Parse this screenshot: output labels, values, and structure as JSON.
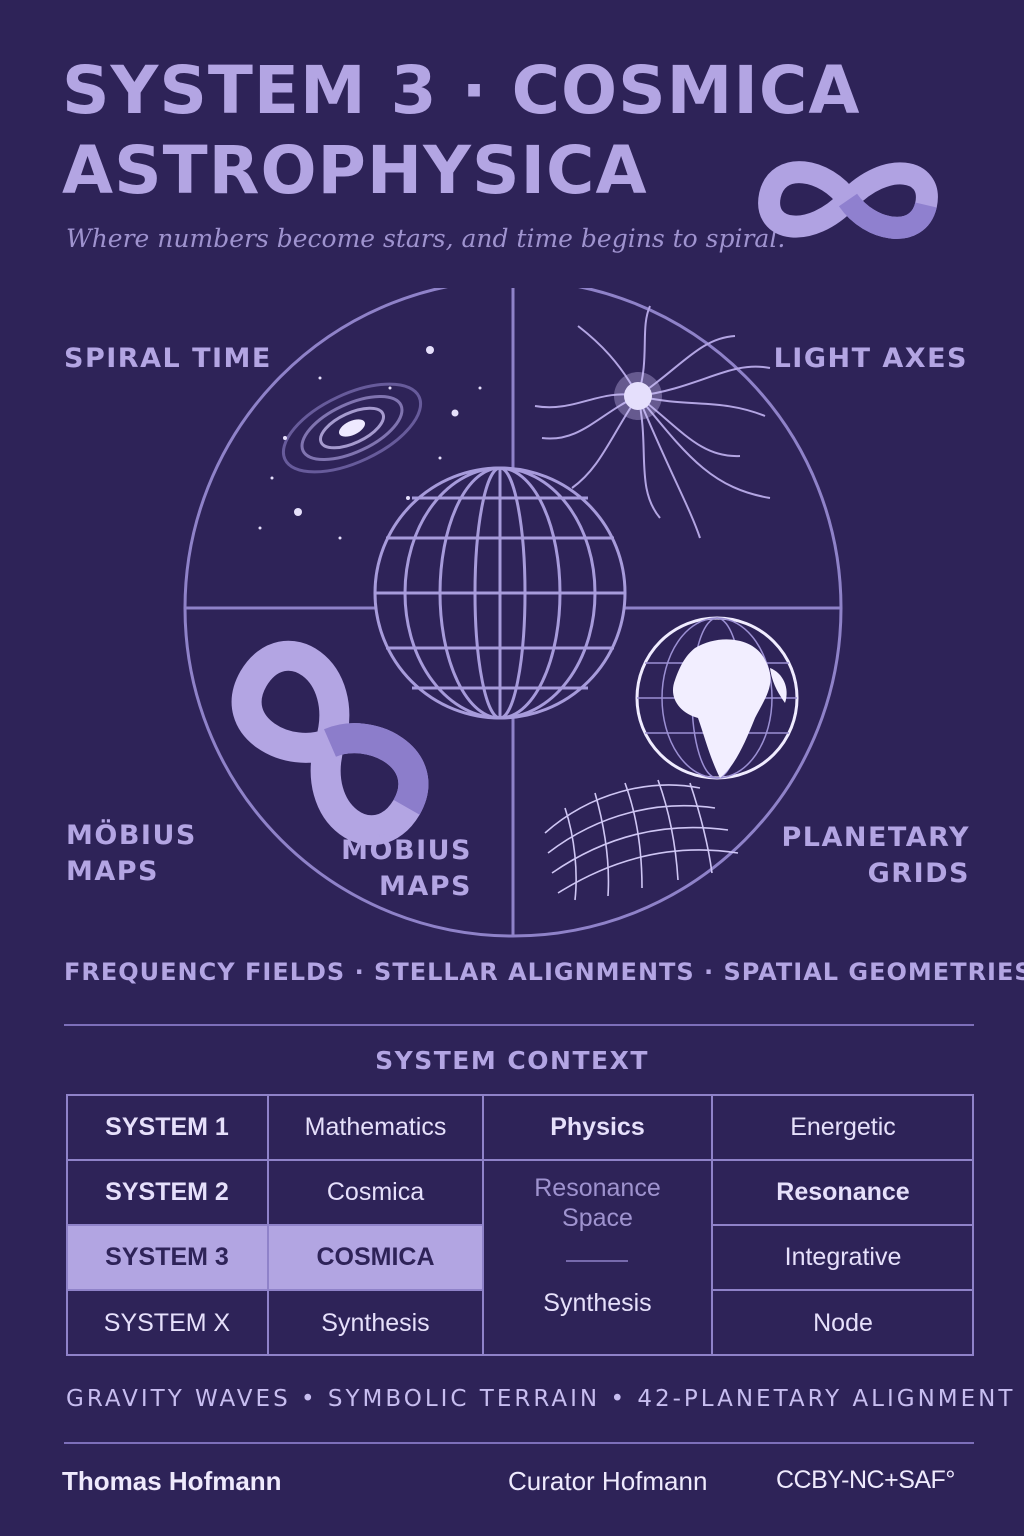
{
  "header": {
    "title_line1": "SYSTEM 3 · COSMICA",
    "title_line2": "ASTROPHYSICA",
    "tagline": "Where numbers become stars, and time begins to spiral."
  },
  "quadrants": {
    "top_left": "SPIRAL TIME",
    "top_right": "LIGHT AXES",
    "bottom_left_outer_line1": "MÖBIUS",
    "bottom_left_outer_line2": "MAPS",
    "bottom_left_inner_line1": "MÖBIUS",
    "bottom_left_inner_line2": "MAPS",
    "bottom_right_line1": "PLANETARY",
    "bottom_right_line2": "GRIDS"
  },
  "subtitle_strip": "FREQUENCY FIELDS · STELLAR ALIGNMENTS · SPATIAL GEOMETRIES",
  "context": {
    "heading": "SYSTEM CONTEXT",
    "rows": [
      {
        "system": "SYSTEM 1",
        "domain": "Mathematics"
      },
      {
        "system": "SYSTEM 2",
        "domain": "Cosmica"
      },
      {
        "system": "SYSTEM 3",
        "domain": "COSMICA"
      },
      {
        "system": "SYSTEM X",
        "domain": "Synthesis"
      }
    ],
    "column3": {
      "top": "Physics",
      "middle_line1": "Resonance",
      "middle_line2": "Space",
      "bottom": "Synthesis"
    },
    "column4": [
      "Energetic",
      "Resonance",
      "Integrative",
      "Node"
    ]
  },
  "footer_strip": "GRAVITY WAVES  •  SYMBOLIC TERRAIN  •  42-PLANETARY ALIGNMENT",
  "footer": {
    "author": "Thomas Hofmann",
    "curator": "Curator Hofmann",
    "license": "CCBY-NC+SAF°"
  },
  "colors": {
    "background": "#2e2358",
    "accent": "#b3a5e3",
    "highlight": "#b2a5e2",
    "line": "#8f82c9"
  },
  "icons": [
    "infinity-icon",
    "spiral-galaxy-icon",
    "starburst-icon",
    "wireframe-globe-icon",
    "mobius-strip-icon",
    "earth-globe-icon",
    "planetary-grid-icon"
  ]
}
